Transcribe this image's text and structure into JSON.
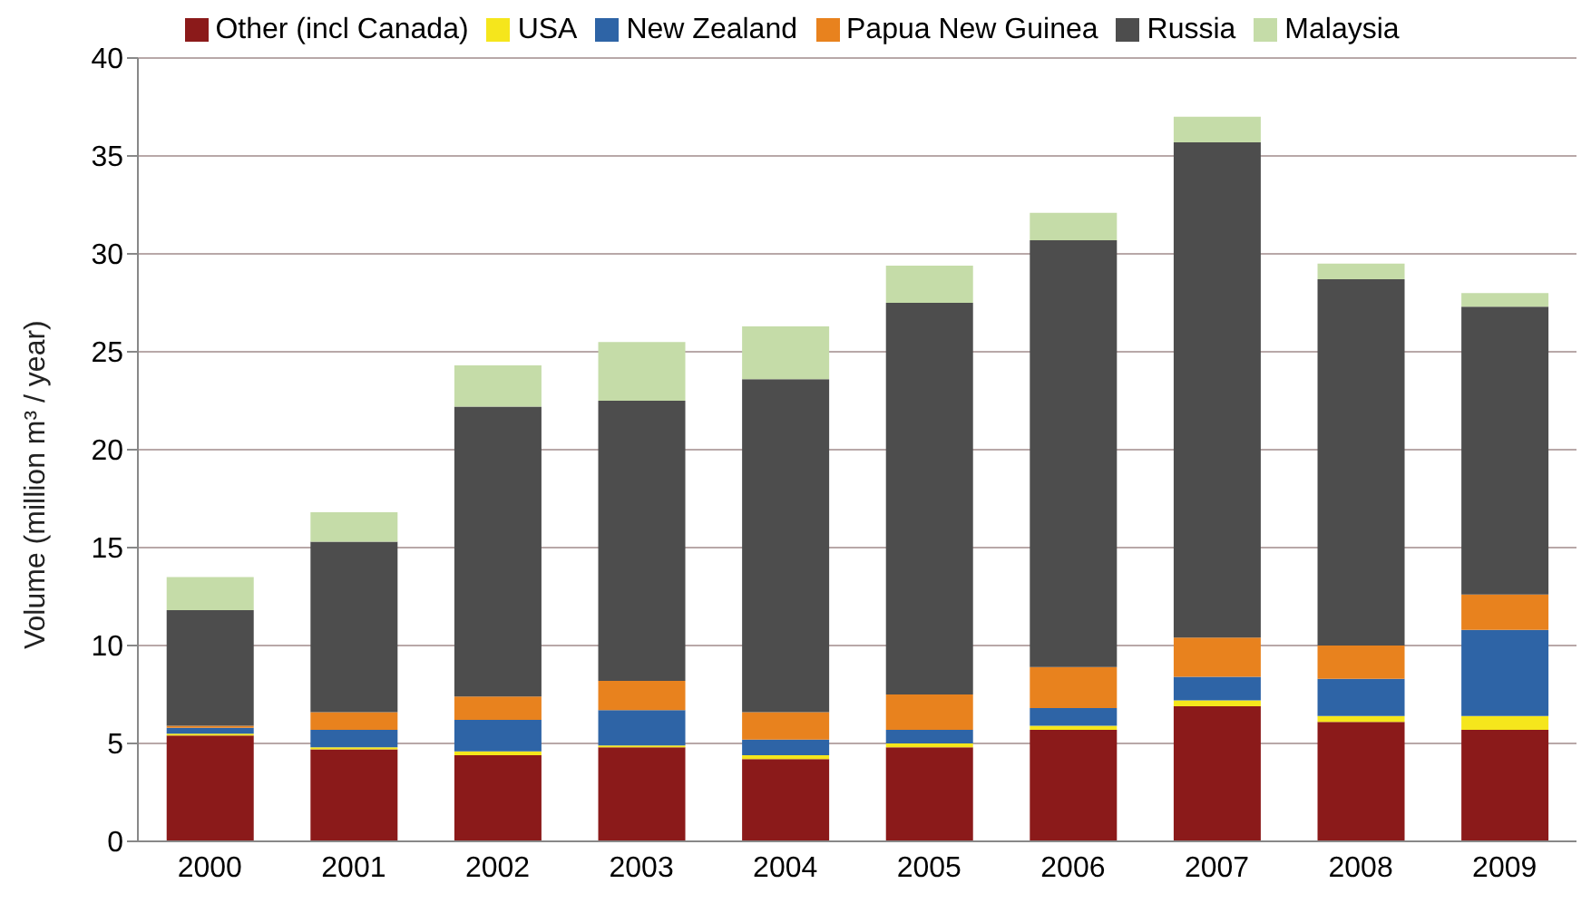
{
  "chart_data": {
    "type": "bar",
    "stacked": true,
    "ylabel": "Volume (million m³ / year)",
    "categories": [
      "2000",
      "2001",
      "2002",
      "2003",
      "2004",
      "2005",
      "2006",
      "2007",
      "2008",
      "2009"
    ],
    "series": [
      {
        "name": "Other (incl Canada)",
        "color": "#8b1a1a",
        "values": [
          5.4,
          4.7,
          4.4,
          4.8,
          4.2,
          4.8,
          5.7,
          6.9,
          6.1,
          5.7
        ]
      },
      {
        "name": "USA",
        "color": "#f5e61c",
        "values": [
          0.1,
          0.1,
          0.2,
          0.1,
          0.2,
          0.2,
          0.2,
          0.3,
          0.3,
          0.7
        ]
      },
      {
        "name": "New Zealand",
        "color": "#2e64a6",
        "values": [
          0.3,
          0.9,
          1.6,
          1.8,
          0.8,
          0.7,
          0.9,
          1.2,
          1.9,
          4.4
        ]
      },
      {
        "name": "Papua New Guinea",
        "color": "#e8821e",
        "values": [
          0.1,
          0.9,
          1.2,
          1.5,
          1.4,
          1.8,
          2.1,
          2.0,
          1.7,
          1.8
        ]
      },
      {
        "name": "Russia",
        "color": "#4d4d4d",
        "values": [
          5.9,
          8.7,
          14.8,
          14.3,
          17.0,
          20.0,
          21.8,
          25.3,
          18.7,
          14.7
        ]
      },
      {
        "name": "Malaysia",
        "color": "#c5dca8",
        "values": [
          1.7,
          1.5,
          2.1,
          3.0,
          2.7,
          1.9,
          1.4,
          1.3,
          0.8,
          0.7
        ]
      }
    ],
    "ylim": [
      0,
      40
    ],
    "yticks": [
      0,
      5,
      10,
      15,
      20,
      25,
      30,
      35,
      40
    ],
    "grid": "y",
    "legend": "top"
  }
}
